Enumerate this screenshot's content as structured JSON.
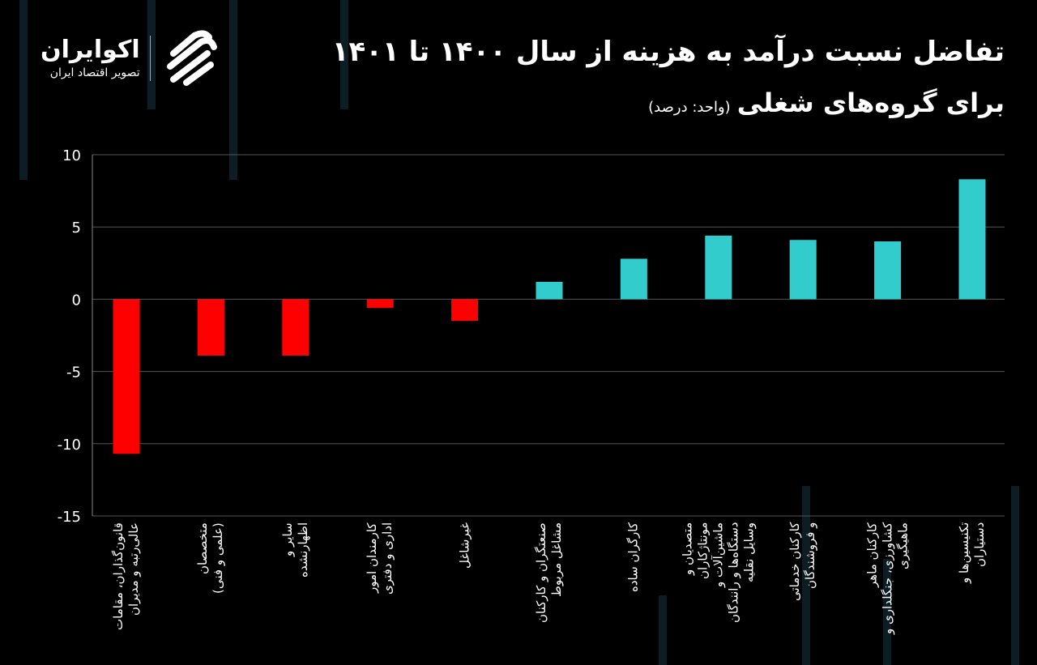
{
  "header": {
    "title": "تفاضل نسبت درآمد به هزینه از سال ۱۴۰۰ تا ۱۴۰۱",
    "subtitle": "برای گروه‌های شغلی",
    "unit": "(واحد: درصد)"
  },
  "logo": {
    "name": "اکوایران",
    "tagline": "تصویر اقتصاد ایران"
  },
  "chart_data": {
    "type": "bar",
    "title": "تفاضل نسبت درآمد به هزینه از سال ۱۴۰۰ تا ۱۴۰۱ برای گروه‌های شغلی",
    "ylabel": "",
    "ylim": [
      -15,
      10
    ],
    "yticks": [
      "10",
      "5",
      "0",
      "-5",
      "-10",
      "-15"
    ],
    "grid": true,
    "categories": [
      "قانون‌گذاران، مقامات\nعالی‌رتبه و مدیران",
      "متخصصان\n(علمی و فنی)",
      "سایر و\nاظهارنشده",
      "کارمندان امور\nاداری و دفتری",
      "غیرشاغل",
      "صنعتگران و کارکنان\nمشاغل مربوط",
      "کارگران ساده",
      "متصدیان و\nمونتاژکاران\nماشین‌آلات و\nدستگاه‌ها و رانندگان\nوسایل نقلیه",
      "کارکنان خدماتی\nو فروشندگان",
      "کارکنان ماهر\nکشاورزی، جنگلداری و\nماهیگیری",
      "تکنیسین‌ها و\nدستیاران"
    ],
    "values": [
      -10.7,
      -3.9,
      -3.9,
      -0.6,
      -1.5,
      1.2,
      2.8,
      4.4,
      4.1,
      4.0,
      8.3
    ],
    "colors": {
      "negative": "#ff0000",
      "positive": "#33cccc"
    }
  }
}
